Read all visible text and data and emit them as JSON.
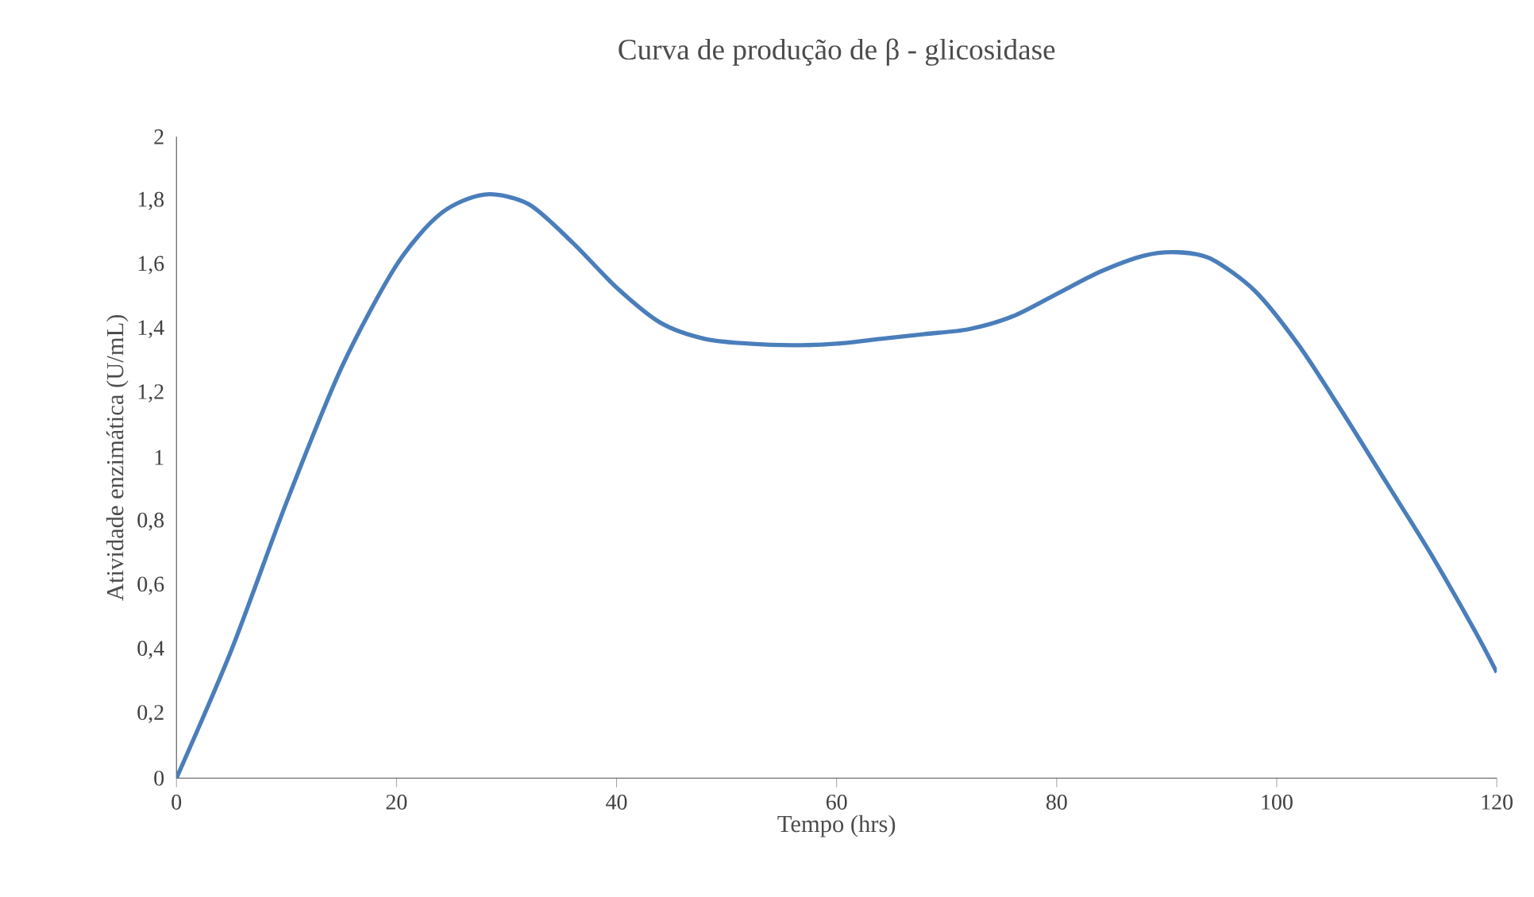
{
  "chart_data": {
    "type": "line",
    "title": "Curva de produção de β - glicosidase",
    "xlabel": "Tempo (hrs)",
    "ylabel": "Atividade enzimática (U/mL)",
    "x": [
      0,
      5,
      10,
      15,
      20,
      24,
      28,
      32,
      36,
      40,
      44,
      48,
      52,
      56,
      60,
      64,
      68,
      72,
      76,
      80,
      84,
      88,
      91,
      94,
      98,
      102,
      106,
      110,
      114,
      118,
      120
    ],
    "series": [
      {
        "color": "#4a7ebb",
        "values": [
          0,
          0.4,
          0.86,
          1.28,
          1.6,
          1.76,
          1.82,
          1.79,
          1.67,
          1.53,
          1.42,
          1.37,
          1.355,
          1.35,
          1.355,
          1.37,
          1.385,
          1.4,
          1.44,
          1.51,
          1.58,
          1.63,
          1.64,
          1.62,
          1.52,
          1.35,
          1.14,
          0.92,
          0.7,
          0.46,
          0.33
        ]
      }
    ],
    "xlim": [
      0,
      120
    ],
    "ylim": [
      0,
      2
    ],
    "xticks": [
      0,
      20,
      40,
      60,
      80,
      100,
      120
    ],
    "yticks": [
      0,
      {
        "value": 0.2,
        "label": "0,2"
      },
      {
        "value": 0.4,
        "label": "0,4"
      },
      {
        "value": 0.6,
        "label": "0,6"
      },
      {
        "value": 0.8,
        "label": "0,8"
      },
      1,
      {
        "value": 1.2,
        "label": "1,2"
      },
      {
        "value": 1.4,
        "label": "1,4"
      },
      {
        "value": 1.6,
        "label": "1,6"
      },
      {
        "value": 1.8,
        "label": "1,8"
      },
      2
    ],
    "grid": false,
    "legend": false,
    "marker": "none",
    "line_style": "solid"
  }
}
